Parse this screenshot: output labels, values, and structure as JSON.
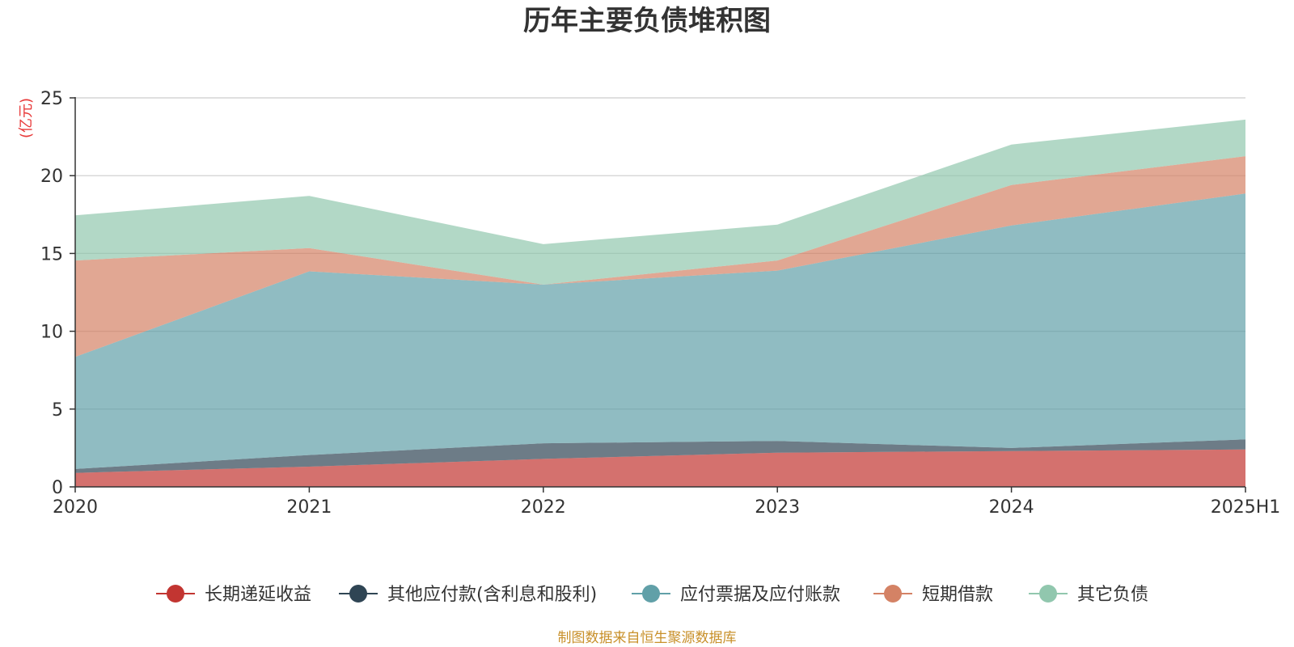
{
  "chart_data": {
    "type": "area",
    "stacked": true,
    "title": "历年主要负债堆积图",
    "unit_label": "(亿元)",
    "x": [
      "2020",
      "2021",
      "2022",
      "2023",
      "2024",
      "2025H1"
    ],
    "ylim": [
      0,
      25
    ],
    "yticks": [
      0,
      5,
      10,
      15,
      20,
      25
    ],
    "grid": true,
    "legend_position": "bottom",
    "series": [
      {
        "name": "长期递延收益",
        "color": "#c23531",
        "values": [
          0.9,
          1.3,
          1.8,
          2.2,
          2.3,
          2.4
        ]
      },
      {
        "name": "其他应付款(含利息和股利)",
        "color": "#2f4554",
        "values": [
          0.25,
          0.75,
          1.0,
          0.75,
          0.2,
          0.65
        ]
      },
      {
        "name": "应付票据及应付账款",
        "color": "#61a0a8",
        "values": [
          7.2,
          11.8,
          10.2,
          10.95,
          14.3,
          15.8
        ]
      },
      {
        "name": "短期借款",
        "color": "#d48265",
        "values": [
          6.2,
          1.5,
          0.0,
          0.65,
          2.6,
          2.4
        ]
      },
      {
        "name": "其它负债",
        "color": "#91c7ae",
        "values": [
          2.9,
          3.35,
          2.6,
          2.3,
          2.6,
          2.35
        ]
      }
    ]
  },
  "source_note": "制图数据来自恒生聚源数据库"
}
